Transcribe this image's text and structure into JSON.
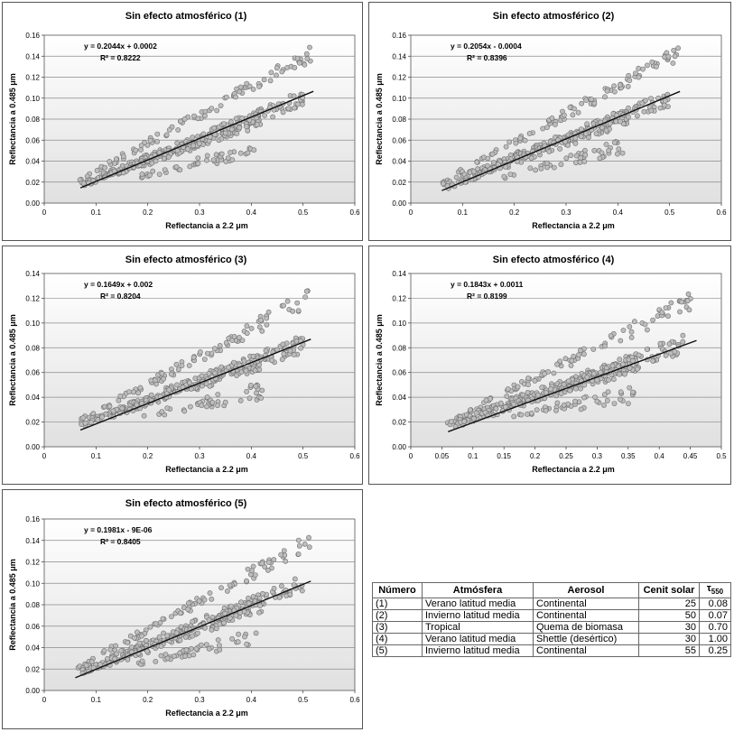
{
  "chart_data": [
    {
      "type": "scatter",
      "title": "Sin efecto atmosférico (1)",
      "xlabel": "Reflectancia a 2.2  μm",
      "ylabel": "Reflectancia a 0.485  μm",
      "xlim": [
        0,
        0.6
      ],
      "ylim": [
        0,
        0.16
      ],
      "xticks": [
        "0",
        "0.1",
        "0.2",
        "0.3",
        "0.4",
        "0.5",
        "0.6"
      ],
      "yticks": [
        "0.00",
        "0.02",
        "0.04",
        "0.06",
        "0.08",
        "0.10",
        "0.12",
        "0.14",
        "0.16"
      ],
      "equation": "y = 0.2044x + 0.0002",
      "r2": "R² = 0.8222",
      "trend": {
        "slope": 0.2044,
        "intercept": 0.0002,
        "x_range": [
          0.07,
          0.52
        ]
      },
      "bands": [
        {
          "x0": 0.065,
          "y0": 0.021,
          "x1": 0.515,
          "y1": 0.142
        },
        {
          "x0": 0.07,
          "y0": 0.018,
          "x1": 0.5,
          "y1": 0.1
        },
        {
          "x0": 0.07,
          "y0": 0.016,
          "x1": 0.42,
          "y1": 0.081
        },
        {
          "x0": 0.18,
          "y0": 0.025,
          "x1": 0.42,
          "y1": 0.053
        }
      ]
    },
    {
      "type": "scatter",
      "title": "Sin efecto atmosférico (2)",
      "xlabel": "Reflectancia a 2.2  μm",
      "ylabel": "Reflectancia a 0.485  μm",
      "xlim": [
        0,
        0.6
      ],
      "ylim": [
        0,
        0.16
      ],
      "xticks": [
        "0",
        "0.1",
        "0.2",
        "0.3",
        "0.4",
        "0.5",
        "0.6"
      ],
      "yticks": [
        "0.00",
        "0.02",
        "0.04",
        "0.06",
        "0.08",
        "0.10",
        "0.12",
        "0.14",
        "0.16"
      ],
      "equation": "y = 0.2054x - 0.0004",
      "r2": "R² = 0.8396",
      "trend": {
        "slope": 0.2054,
        "intercept": -0.0004,
        "x_range": [
          0.06,
          0.52
        ]
      },
      "bands": [
        {
          "x0": 0.06,
          "y0": 0.02,
          "x1": 0.52,
          "y1": 0.144
        },
        {
          "x0": 0.06,
          "y0": 0.018,
          "x1": 0.5,
          "y1": 0.1
        },
        {
          "x0": 0.07,
          "y0": 0.015,
          "x1": 0.42,
          "y1": 0.082
        },
        {
          "x0": 0.18,
          "y0": 0.025,
          "x1": 0.41,
          "y1": 0.054
        }
      ]
    },
    {
      "type": "scatter",
      "title": "Sin efecto atmosférico (3)",
      "xlabel": "Reflectancia a 2.2  μm",
      "ylabel": "Reflectancia a 0.485  μm",
      "xlim": [
        0,
        0.6
      ],
      "ylim": [
        0,
        0.14
      ],
      "xticks": [
        "0",
        "0.1",
        "0.2",
        "0.3",
        "0.4",
        "0.5",
        "0.6"
      ],
      "yticks": [
        "0.00",
        "0.02",
        "0.04",
        "0.06",
        "0.08",
        "0.10",
        "0.12",
        "0.14"
      ],
      "equation": "y = 0.1649x + 0.002",
      "r2": "R² = 0.8204",
      "trend": {
        "slope": 0.1649,
        "intercept": 0.002,
        "x_range": [
          0.07,
          0.515
        ]
      },
      "bands": [
        {
          "x0": 0.065,
          "y0": 0.02,
          "x1": 0.51,
          "y1": 0.12
        },
        {
          "x0": 0.07,
          "y0": 0.019,
          "x1": 0.5,
          "y1": 0.083
        },
        {
          "x0": 0.07,
          "y0": 0.017,
          "x1": 0.42,
          "y1": 0.07
        },
        {
          "x0": 0.18,
          "y0": 0.024,
          "x1": 0.42,
          "y1": 0.045
        }
      ]
    },
    {
      "type": "scatter",
      "title": "Sin efecto atmosférico (4)",
      "xlabel": "Reflectancia a 2.2  μm",
      "ylabel": "Reflectancia a 0.485  μm",
      "xlim": [
        0,
        0.5
      ],
      "ylim": [
        0,
        0.14
      ],
      "xticks": [
        "0",
        "0.05",
        "0.1",
        "0.15",
        "0.2",
        "0.25",
        "0.3",
        "0.35",
        "0.4",
        "0.45",
        "0.5"
      ],
      "yticks": [
        "0.00",
        "0.02",
        "0.04",
        "0.06",
        "0.08",
        "0.10",
        "0.12",
        "0.14"
      ],
      "equation": "y = 0.1843x + 0.0011",
      "r2": "R² = 0.8199",
      "trend": {
        "slope": 0.1843,
        "intercept": 0.0011,
        "x_range": [
          0.06,
          0.46
        ]
      },
      "bands": [
        {
          "x0": 0.06,
          "y0": 0.02,
          "x1": 0.455,
          "y1": 0.119
        },
        {
          "x0": 0.06,
          "y0": 0.019,
          "x1": 0.44,
          "y1": 0.083
        },
        {
          "x0": 0.07,
          "y0": 0.017,
          "x1": 0.37,
          "y1": 0.068
        },
        {
          "x0": 0.15,
          "y0": 0.024,
          "x1": 0.36,
          "y1": 0.043
        }
      ]
    },
    {
      "type": "scatter",
      "title": "Sin efecto atmosférico (5)",
      "xlabel": "Reflectancia a 2.2  μm",
      "ylabel": "Reflectancia a 0.485  μm",
      "xlim": [
        0,
        0.6
      ],
      "ylim": [
        0,
        0.16
      ],
      "xticks": [
        "0",
        "0.1",
        "0.2",
        "0.3",
        "0.4",
        "0.5",
        "0.6"
      ],
      "yticks": [
        "0.00",
        "0.02",
        "0.04",
        "0.06",
        "0.08",
        "0.10",
        "0.12",
        "0.14",
        "0.16"
      ],
      "equation": "y = 0.1981x - 9E-06",
      "r2": "R² = 0.8405",
      "trend": {
        "slope": 0.1981,
        "intercept": -9e-06,
        "x_range": [
          0.06,
          0.515
        ]
      },
      "bands": [
        {
          "x0": 0.06,
          "y0": 0.02,
          "x1": 0.515,
          "y1": 0.14
        },
        {
          "x0": 0.06,
          "y0": 0.018,
          "x1": 0.5,
          "y1": 0.1
        },
        {
          "x0": 0.07,
          "y0": 0.015,
          "x1": 0.42,
          "y1": 0.08
        },
        {
          "x0": 0.18,
          "y0": 0.025,
          "x1": 0.41,
          "y1": 0.05
        }
      ]
    }
  ],
  "table": {
    "headers": [
      "Número",
      "Atmósfera",
      "Aerosol",
      "Cenit solar",
      "τ550"
    ],
    "tau_symbol": "τ",
    "tau_sub": "550",
    "rows": [
      [
        "(1)",
        "Verano latitud media",
        "Continental",
        "25",
        "0.08"
      ],
      [
        "(2)",
        "Invierno latitud media",
        "Continental",
        "50",
        "0.07"
      ],
      [
        "(3)",
        "Tropical",
        "Quema de biomasa",
        "30",
        "0.70"
      ],
      [
        "(4)",
        "Verano latitud media",
        "Shettle (desértico)",
        "30",
        "1.00"
      ],
      [
        "(5)",
        "Invierno latitud media",
        "Continental",
        "55",
        "0.25"
      ]
    ]
  },
  "colors": {
    "marker_fill": "#bdbdbd",
    "marker_stroke": "#6e6e6e",
    "trend_line": "#111111",
    "grid": "#8a8a8a",
    "plot_top": "#ffffff",
    "plot_bottom": "#e0e0e0"
  }
}
